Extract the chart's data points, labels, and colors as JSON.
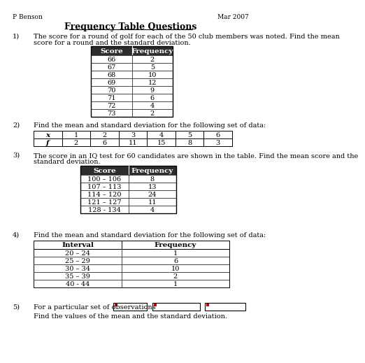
{
  "title": "Frequency Table Questions",
  "header_left": "P Benson",
  "header_right": "Mar 2007",
  "q1_text1": "The score for a round of golf for each of the 50 club members was noted. Find the mean",
  "q1_text2": "score for a round and the standard deviation.",
  "q1_table_headers": [
    "Score",
    "Frequency"
  ],
  "q1_table_data": [
    [
      "66",
      "2"
    ],
    [
      "67",
      "5"
    ],
    [
      "68",
      "10"
    ],
    [
      "69",
      "12"
    ],
    [
      "70",
      "9"
    ],
    [
      "71",
      "6"
    ],
    [
      "72",
      "4"
    ],
    [
      "73",
      "2"
    ]
  ],
  "q2_text": "Find the mean and standard deviation for the following set of data:",
  "q2_table_x": [
    "x",
    "1",
    "2",
    "3",
    "4",
    "5",
    "6"
  ],
  "q2_table_f": [
    "f",
    "2",
    "6",
    "11",
    "15",
    "8",
    "3"
  ],
  "q3_text1": "The score in an IQ test for 60 candidates are shown in the table. Find the mean score and the",
  "q3_text2": "standard deviation.",
  "q3_table_headers": [
    "Score",
    "Frequency"
  ],
  "q3_table_data": [
    [
      "100 – 106",
      "8"
    ],
    [
      "107 – 113",
      "13"
    ],
    [
      "114 – 120",
      "24"
    ],
    [
      "121 – 127",
      "11"
    ],
    [
      "128 - 134",
      "4"
    ]
  ],
  "q4_text": "Find the mean and standard deviation for the following set of data:",
  "q4_table_headers": [
    "Interval",
    "Frequency"
  ],
  "q4_table_data": [
    [
      "20 – 24",
      "1"
    ],
    [
      "25 – 29",
      "6"
    ],
    [
      "30 – 34",
      "10"
    ],
    [
      "35 – 39",
      "2"
    ],
    [
      "40 - 44",
      "1"
    ]
  ],
  "q5_text": "For a particular set of observations",
  "q5_text2": "Find the values of the mean and the standard deviation.",
  "bg_color": "#ffffff",
  "table_header_bg": "#2d2d2d",
  "table_header_fg": "#ffffff"
}
